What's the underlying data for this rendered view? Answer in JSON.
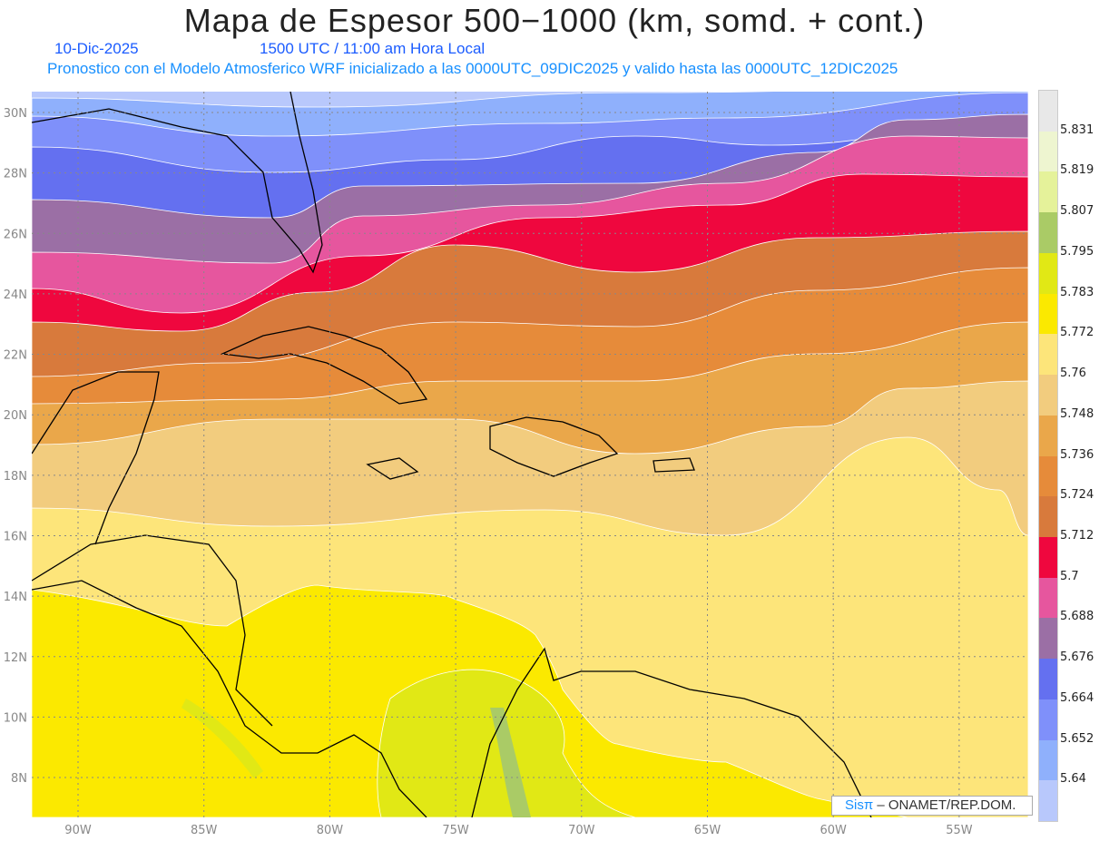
{
  "header": {
    "title": "Mapa de Espesor 500−1000 (km, somd. + cont.)",
    "date": "10-Dic-2025",
    "time": "1500 UTC / 11:00 am Hora Local",
    "subtitle": "Pronostico con el Modelo Atmosferico WRF inicializado a las 0000UTC_09DIC2025 y valido hasta las  0000UTC_12DIC2025"
  },
  "axes": {
    "lon_labels": [
      "90W",
      "85W",
      "80W",
      "75W",
      "70W",
      "65W",
      "60W",
      "55W"
    ],
    "lon_values": [
      -90,
      -85,
      -80,
      -75,
      -70,
      -65,
      -60,
      -55
    ],
    "lat_labels": [
      "30N",
      "28N",
      "26N",
      "24N",
      "22N",
      "20N",
      "18N",
      "16N",
      "14N",
      "12N",
      "10N",
      "8N"
    ],
    "lat_values": [
      30,
      28,
      26,
      24,
      22,
      20,
      18,
      16,
      14,
      12,
      10,
      8
    ]
  },
  "legend": {
    "labels": [
      "5.831",
      "5.819",
      "5.807",
      "5.795",
      "5.783",
      "5.772",
      "5.76",
      "5.748",
      "5.736",
      "5.724",
      "5.712",
      "5.7",
      "5.688",
      "5.676",
      "5.664",
      "5.652",
      "5.64"
    ],
    "colors": [
      "#e8e8e8",
      "#eef5d0",
      "#e5f29a",
      "#aacb66",
      "#e1e815",
      "#fbe900",
      "#fde57a",
      "#f2cc7e",
      "#eaa74a",
      "#e68b3a",
      "#d87a3c",
      "#ef073e",
      "#e6569e",
      "#9b6fa5",
      "#6470f0",
      "#7f90fa",
      "#8fb0fc",
      "#b8c8fc"
    ]
  },
  "credit": {
    "brand": "Sisπ",
    "org": "– ONAMET/REP.DOM."
  }
}
